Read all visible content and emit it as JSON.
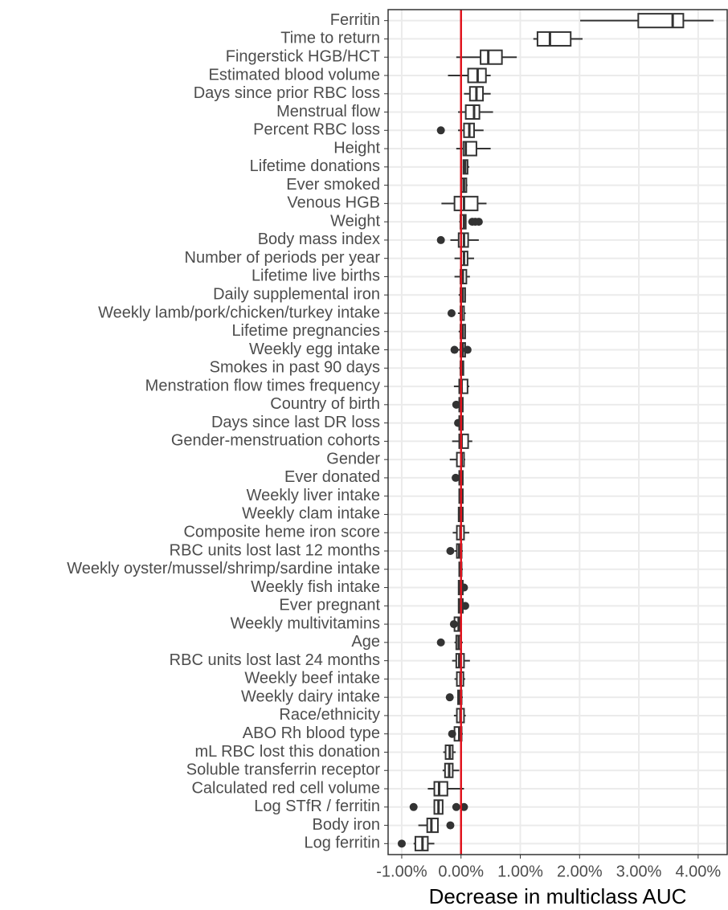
{
  "chart_data": {
    "type": "boxplot",
    "x_label": "Decrease in multiclass AUC",
    "xlim": [
      -1.23,
      4.49
    ],
    "xticks": [
      {
        "value": -1,
        "label": "-1.00%"
      },
      {
        "value": 0,
        "label": "0.00%"
      },
      {
        "value": 1,
        "label": "1.00%"
      },
      {
        "value": 2,
        "label": "2.00%"
      },
      {
        "value": 3,
        "label": "3.00%"
      },
      {
        "value": 4,
        "label": "4.00%"
      }
    ],
    "grid": true,
    "box_color": "#333333",
    "reference_line": 0,
    "reference_color": "#e0141e",
    "categories": [
      "Ferritin",
      "Time to return",
      "Fingerstick HGB/HCT",
      "Estimated blood volume",
      "Days since prior RBC loss",
      "Menstrual flow",
      "Percent RBC loss",
      "Height",
      "Lifetime donations",
      "Ever smoked",
      "Venous HGB",
      "Weight",
      "Body mass index",
      "Number of periods per year",
      "Lifetime live births",
      "Daily supplemental iron",
      "Weekly lamb/pork/chicken/turkey intake",
      "Lifetime pregnancies",
      "Weekly egg intake",
      "Smokes in past 90 days",
      "Menstration flow times frequency",
      "Country of birth",
      "Days since last DR loss",
      "Gender-menstruation cohorts",
      "Gender",
      "Ever donated",
      "Weekly liver intake",
      "Weekly clam intake",
      "Composite heme iron score",
      "RBC units lost last 12 months",
      "Weekly oyster/mussel/shrimp/sardine intake",
      "Weekly fish intake",
      "Ever pregnant",
      "Weekly multivitamins",
      "Age",
      "RBC units lost last 24 months",
      "Weekly beef intake",
      "Weekly dairy intake",
      "Race/ethnicity",
      "ABO Rh blood type",
      "mL RBC lost this donation",
      "Soluble transferrin receptor",
      "Calculated red cell volume",
      "Log STfR / ferritin",
      "Body iron",
      "Log ferritin"
    ],
    "min": [
      2.01,
      1.22,
      -0.08,
      -0.22,
      0.05,
      -0.05,
      -0.05,
      -0.08,
      0.03,
      0.0,
      -0.33,
      -0.03,
      -0.18,
      -0.11,
      -0.11,
      -0.04,
      -0.05,
      -0.04,
      -0.05,
      -0.03,
      -0.12,
      -0.04,
      -0.03,
      -0.15,
      -0.19,
      -0.04,
      -0.03,
      -0.04,
      -0.14,
      -0.11,
      -0.03,
      -0.04,
      -0.04,
      -0.11,
      -0.11,
      -0.15,
      -0.11,
      -0.05,
      -0.12,
      -0.11,
      -0.3,
      -0.31,
      -0.56,
      -0.46,
      -0.72,
      -0.8
    ],
    "q1": [
      2.99,
      1.29,
      0.33,
      0.12,
      0.15,
      0.08,
      0.05,
      0.04,
      0.04,
      0.01,
      -0.11,
      -0.01,
      -0.04,
      0.0,
      -0.01,
      -0.01,
      -0.01,
      -0.01,
      -0.01,
      -0.01,
      -0.03,
      -0.03,
      -0.03,
      -0.03,
      -0.07,
      -0.03,
      -0.03,
      -0.04,
      -0.07,
      -0.07,
      -0.03,
      -0.04,
      -0.04,
      -0.11,
      -0.08,
      -0.08,
      -0.07,
      -0.05,
      -0.07,
      -0.11,
      -0.26,
      -0.27,
      -0.45,
      -0.45,
      -0.57,
      -0.77
    ],
    "median": [
      3.57,
      1.5,
      0.46,
      0.28,
      0.26,
      0.22,
      0.14,
      0.08,
      0.07,
      0.05,
      0.05,
      0.05,
      0.05,
      0.05,
      0.03,
      0.03,
      0.01,
      0.03,
      0.03,
      0.01,
      0.01,
      0.0,
      0.0,
      0.01,
      0.01,
      0.0,
      0.0,
      -0.01,
      -0.01,
      -0.03,
      -0.01,
      -0.01,
      -0.01,
      -0.04,
      -0.04,
      -0.03,
      -0.01,
      -0.03,
      -0.01,
      -0.03,
      -0.19,
      -0.2,
      -0.37,
      -0.38,
      -0.5,
      -0.65
    ],
    "q3": [
      3.75,
      1.85,
      0.69,
      0.42,
      0.37,
      0.31,
      0.22,
      0.26,
      0.11,
      0.09,
      0.28,
      0.08,
      0.12,
      0.11,
      0.09,
      0.07,
      0.05,
      0.07,
      0.07,
      0.04,
      0.11,
      0.03,
      0.03,
      0.12,
      0.05,
      0.03,
      0.03,
      0.03,
      0.05,
      0.01,
      0.01,
      0.03,
      0.03,
      -0.01,
      0.0,
      0.05,
      0.04,
      0.01,
      0.05,
      0.01,
      -0.14,
      -0.14,
      -0.23,
      -0.31,
      -0.39,
      -0.56
    ],
    "max": [
      4.26,
      2.05,
      0.94,
      0.5,
      0.5,
      0.54,
      0.38,
      0.5,
      0.14,
      0.11,
      0.43,
      0.09,
      0.3,
      0.22,
      0.15,
      0.08,
      0.08,
      0.08,
      0.08,
      0.05,
      0.14,
      0.04,
      0.04,
      0.19,
      0.07,
      0.04,
      0.04,
      0.04,
      0.14,
      0.03,
      0.03,
      0.04,
      0.04,
      0.01,
      0.03,
      0.15,
      0.07,
      0.03,
      0.08,
      0.03,
      -0.09,
      -0.03,
      0.05,
      -0.3,
      -0.39,
      -0.45
    ],
    "outliers": [
      [],
      [],
      [],
      [],
      [],
      [],
      [
        -0.34
      ],
      [],
      [],
      [],
      [],
      [
        0.19,
        0.24,
        0.3
      ],
      [
        -0.34
      ],
      [],
      [],
      [],
      [
        -0.16
      ],
      [],
      [
        -0.11,
        0.11
      ],
      [],
      [],
      [
        -0.08
      ],
      [
        -0.05
      ],
      [],
      [],
      [
        -0.09
      ],
      [],
      [],
      [],
      [
        -0.18
      ],
      [],
      [
        0.05
      ],
      [
        0.07
      ],
      [
        -0.12
      ],
      [
        -0.34
      ],
      [],
      [],
      [
        -0.19
      ],
      [],
      [
        -0.15
      ],
      [],
      [],
      [],
      [
        -0.8,
        -0.08,
        0.05
      ],
      [
        -0.18
      ],
      [
        -1.0
      ]
    ]
  }
}
